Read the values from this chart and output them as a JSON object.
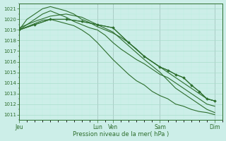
{
  "bg_color": "#cceee8",
  "grid_major_color": "#aaddcc",
  "grid_minor_color": "#bbeedf",
  "line_color": "#2d6e2d",
  "ylim": [
    1010.5,
    1021.5
  ],
  "yticks": [
    1011,
    1012,
    1013,
    1014,
    1015,
    1016,
    1017,
    1018,
    1019,
    1020,
    1021
  ],
  "xlabel": "Pression niveau de la mer( hPa )",
  "day_labels": [
    "Jeu",
    "Lun",
    "Ven",
    "Sam",
    "Dim"
  ],
  "day_x": [
    0,
    5.0,
    6.0,
    9.0,
    12.5
  ],
  "xlim": [
    0,
    13.0
  ],
  "vline_positions": [
    0.0,
    5.0,
    6.0,
    9.0,
    12.5
  ],
  "line1_x": [
    0,
    0.5,
    1.0,
    1.5,
    2.0,
    2.5,
    3.0,
    3.5,
    4.0,
    4.5,
    5.0,
    5.5,
    6.0,
    6.5,
    7.0,
    7.5,
    8.0,
    8.5,
    9.0,
    9.5,
    10.0,
    10.5,
    11.0,
    11.5,
    12.0,
    12.5
  ],
  "line1_y": [
    1019.0,
    1020.0,
    1020.5,
    1021.0,
    1021.2,
    1021.0,
    1020.8,
    1020.5,
    1020.0,
    1019.7,
    1019.3,
    1019.0,
    1018.7,
    1018.3,
    1017.8,
    1017.2,
    1016.5,
    1016.0,
    1015.5,
    1015.0,
    1014.5,
    1014.0,
    1013.5,
    1013.0,
    1012.5,
    1012.3
  ],
  "line2_x": [
    0,
    0.5,
    1.0,
    1.5,
    2.0,
    2.5,
    3.0,
    3.5,
    4.0,
    4.5,
    5.0,
    5.5,
    6.0,
    6.5,
    7.0,
    7.5,
    8.0,
    8.5,
    9.0,
    9.5,
    10.0,
    10.5,
    11.0,
    11.5,
    12.0,
    12.5
  ],
  "line2_y": [
    1019.0,
    1019.5,
    1020.0,
    1020.5,
    1020.8,
    1020.5,
    1020.2,
    1019.8,
    1019.5,
    1019.2,
    1019.0,
    1018.5,
    1017.8,
    1017.2,
    1016.7,
    1016.2,
    1015.8,
    1015.3,
    1014.8,
    1014.5,
    1014.0,
    1013.5,
    1013.0,
    1012.5,
    1012.0,
    1011.8
  ],
  "line3_x": [
    0,
    1.0,
    2.0,
    3.0,
    4.0,
    5.0,
    6.0,
    7.0,
    8.0,
    9.0,
    10.0,
    11.0,
    12.0,
    12.5
  ],
  "line3_y": [
    1019.2,
    1019.8,
    1020.3,
    1020.5,
    1020.2,
    1019.5,
    1018.8,
    1017.5,
    1016.2,
    1015.0,
    1013.5,
    1012.5,
    1011.5,
    1011.2
  ],
  "line4_x": [
    0,
    1.0,
    2.0,
    3.0,
    4.0,
    5.0,
    6.0,
    7.0,
    8.0,
    9.0,
    9.5,
    10.0,
    10.5,
    11.0,
    11.5,
    12.0,
    12.5
  ],
  "line4_y": [
    1019.0,
    1019.5,
    1020.0,
    1020.0,
    1019.8,
    1019.5,
    1019.2,
    1017.8,
    1016.5,
    1015.5,
    1015.2,
    1014.8,
    1014.5,
    1013.8,
    1013.2,
    1012.5,
    1012.3
  ],
  "markers_x": [
    0,
    1.0,
    2.0,
    3.0,
    4.0,
    5.0,
    6.0,
    7.0,
    8.0,
    9.0,
    9.5,
    10.0,
    10.5,
    11.0,
    11.5,
    12.0,
    12.5
  ],
  "markers_y": [
    1019.0,
    1019.5,
    1020.0,
    1020.0,
    1019.8,
    1019.5,
    1019.2,
    1017.8,
    1016.5,
    1015.5,
    1015.2,
    1014.8,
    1014.5,
    1013.8,
    1013.2,
    1012.5,
    1012.3
  ],
  "line5_x": [
    0,
    0.5,
    1.0,
    1.5,
    2.0,
    2.5,
    3.0,
    3.5,
    4.0,
    4.5,
    5.0,
    5.5,
    6.0,
    6.5,
    7.0,
    7.5,
    8.0,
    8.5,
    9.0,
    9.5,
    10.0,
    10.5,
    11.0,
    11.5,
    12.0,
    12.5
  ],
  "line5_y": [
    1019.0,
    1019.3,
    1019.6,
    1019.9,
    1020.0,
    1019.8,
    1019.6,
    1019.4,
    1019.0,
    1018.5,
    1017.8,
    1017.0,
    1016.2,
    1015.5,
    1014.8,
    1014.2,
    1013.8,
    1013.2,
    1012.8,
    1012.5,
    1012.0,
    1011.8,
    1011.5,
    1011.3,
    1011.2,
    1011.0
  ]
}
